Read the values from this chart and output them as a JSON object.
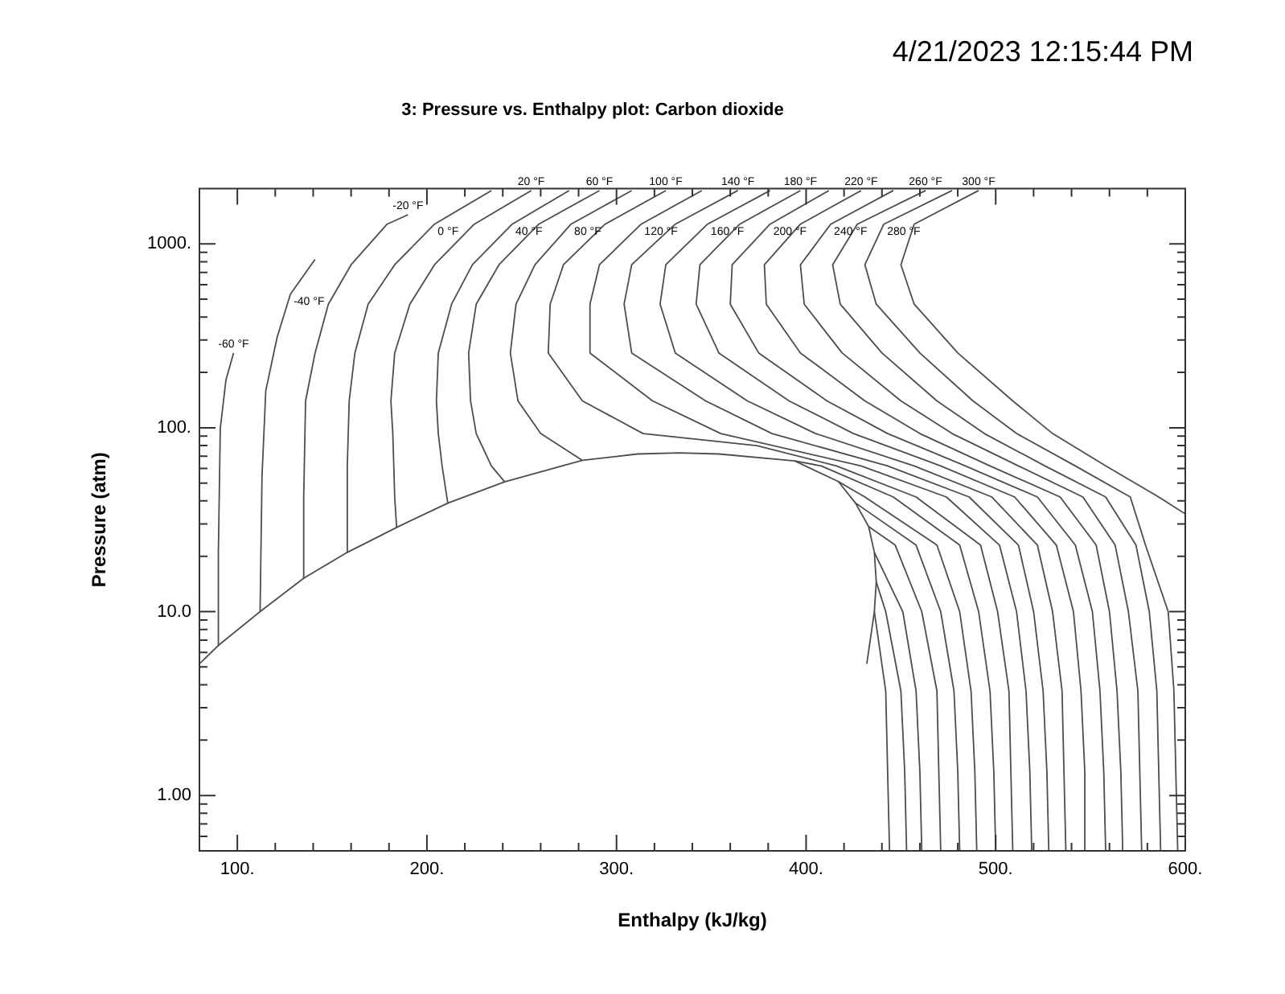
{
  "chart_data": {
    "type": "line",
    "title": "3: Pressure vs. Enthalpy plot: Carbon dioxide",
    "xlabel": "Enthalpy (kJ/kg)",
    "ylabel": "Pressure (atm)",
    "annotations": [
      "4/21/2023 12:15:44 PM"
    ],
    "log": "y",
    "xlim": [
      80,
      600
    ],
    "ylim": [
      0.5,
      2000
    ],
    "xticks": [
      {
        "value": 80,
        "label": null
      },
      {
        "value": 100,
        "label": "100."
      },
      {
        "value": 120,
        "label": null
      },
      {
        "value": 140,
        "label": null
      },
      {
        "value": 160,
        "label": null
      },
      {
        "value": 180,
        "label": null
      },
      {
        "value": 200,
        "label": "200."
      },
      {
        "value": 220,
        "label": null
      },
      {
        "value": 240,
        "label": null
      },
      {
        "value": 260,
        "label": null
      },
      {
        "value": 280,
        "label": null
      },
      {
        "value": 300,
        "label": "300."
      },
      {
        "value": 320,
        "label": null
      },
      {
        "value": 340,
        "label": null
      },
      {
        "value": 360,
        "label": null
      },
      {
        "value": 380,
        "label": null
      },
      {
        "value": 400,
        "label": "400."
      },
      {
        "value": 420,
        "label": null
      },
      {
        "value": 440,
        "label": null
      },
      {
        "value": 460,
        "label": null
      },
      {
        "value": 480,
        "label": null
      },
      {
        "value": 500,
        "label": "500."
      },
      {
        "value": 520,
        "label": null
      },
      {
        "value": 540,
        "label": null
      },
      {
        "value": 560,
        "label": null
      },
      {
        "value": 580,
        "label": null
      },
      {
        "value": 600,
        "label": "600."
      }
    ],
    "yticks": [
      {
        "value": 0.6,
        "label": null
      },
      {
        "value": 0.7,
        "label": null
      },
      {
        "value": 0.8,
        "label": null
      },
      {
        "value": 0.9,
        "label": null
      },
      {
        "value": 1,
        "label": "1.00"
      },
      {
        "value": 2,
        "label": null
      },
      {
        "value": 3,
        "label": null
      },
      {
        "value": 4,
        "label": null
      },
      {
        "value": 5,
        "label": null
      },
      {
        "value": 6,
        "label": null
      },
      {
        "value": 7,
        "label": null
      },
      {
        "value": 8,
        "label": null
      },
      {
        "value": 9,
        "label": null
      },
      {
        "value": 10,
        "label": "10.0"
      },
      {
        "value": 20,
        "label": null
      },
      {
        "value": 30,
        "label": null
      },
      {
        "value": 40,
        "label": null
      },
      {
        "value": 50,
        "label": null
      },
      {
        "value": 60,
        "label": null
      },
      {
        "value": 70,
        "label": null
      },
      {
        "value": 80,
        "label": null
      },
      {
        "value": 90,
        "label": null
      },
      {
        "value": 100,
        "label": "100."
      },
      {
        "value": 200,
        "label": null
      },
      {
        "value": 300,
        "label": null
      },
      {
        "value": 400,
        "label": null
      },
      {
        "value": 500,
        "label": null
      },
      {
        "value": 600,
        "label": null
      },
      {
        "value": 700,
        "label": null
      },
      {
        "value": 800,
        "label": null
      },
      {
        "value": 900,
        "label": null
      },
      {
        "value": 1000,
        "label": "1000."
      }
    ],
    "series": [
      {
        "color": "#4d4d4d",
        "x": [
          80,
          90,
          112,
          135,
          158,
          184,
          211,
          241,
          282,
          311,
          333,
          354,
          394,
          417,
          426,
          433,
          436,
          437,
          436,
          432
        ],
        "values": [
          5.2,
          6.55,
          10,
          15.2,
          21,
          28.7,
          38.9,
          50.8,
          66.5,
          72,
          73,
          72,
          66,
          51,
          39,
          29,
          21,
          14.5,
          10,
          5.2
        ]
      },
      {
        "name": "-60 °F",
        "color": "#4d4d4d",
        "x": [
          98,
          94,
          91,
          90,
          90
        ],
        "values": [
          255,
          182,
          99,
          21,
          6.55
        ]
      },
      {
        "name": "-40 °F",
        "color": "#4d4d4d",
        "x": [
          141,
          128,
          121,
          115,
          113,
          112
        ],
        "values": [
          824,
          533,
          311,
          159,
          54,
          10
        ]
      },
      {
        "name": "-20 °F",
        "color": "#4d4d4d",
        "x": [
          190,
          179,
          160,
          148,
          141,
          136,
          135,
          135
        ],
        "values": [
          1440,
          1280,
          770,
          470,
          255,
          140,
          42,
          15.2
        ]
      },
      {
        "name": "0 °F",
        "color": "#4d4d4d",
        "x": [
          234,
          204,
          183,
          169,
          162,
          159,
          158,
          158
        ],
        "values": [
          1950,
          1280,
          770,
          470,
          255,
          140,
          62,
          21
        ]
      },
      {
        "name": "20 °F",
        "color": "#4d4d4d",
        "x": [
          255,
          225,
          204,
          191,
          183,
          181,
          182,
          183,
          184
        ],
        "values": [
          1950,
          1280,
          770,
          470,
          255,
          140,
          93,
          42,
          28.7
        ]
      },
      {
        "name": "40 °F",
        "color": "#4d4d4d",
        "x": [
          275,
          245,
          224,
          213,
          206,
          205,
          206,
          208,
          211
        ],
        "values": [
          1950,
          1280,
          770,
          470,
          255,
          140,
          93,
          62,
          38.9
        ]
      },
      {
        "name": "60 °F",
        "color": "#4d4d4d",
        "x": [
          291,
          259,
          238,
          226,
          222,
          223,
          226,
          234,
          241
        ],
        "values": [
          1950,
          1280,
          770,
          470,
          255,
          140,
          93,
          62,
          50.8
        ]
      },
      {
        "name": "80 °F",
        "color": "#4d4d4d",
        "x": [
          308,
          276,
          257,
          247,
          244,
          248,
          260,
          282
        ],
        "values": [
          1950,
          1280,
          770,
          470,
          255,
          140,
          93,
          66.5
        ]
      },
      {
        "color": "#4d4d4d",
        "x": [
          436,
          442,
          443,
          444
        ],
        "values": [
          10,
          3.7,
          1.35,
          0.5
        ]
      },
      {
        "color": "#4d4d4d",
        "x": [
          437,
          442,
          450,
          452,
          453
        ],
        "values": [
          14.5,
          10,
          3.7,
          1.35,
          0.5
        ]
      },
      {
        "color": "#4d4d4d",
        "x": [
          436,
          451,
          458,
          460,
          461
        ],
        "values": [
          21,
          10,
          3.7,
          1.35,
          0.5
        ]
      },
      {
        "color": "#4d4d4d",
        "x": [
          433,
          447,
          461,
          469,
          470,
          471
        ],
        "values": [
          29,
          23,
          10,
          3.7,
          1.35,
          0.5
        ]
      },
      {
        "color": "#4d4d4d",
        "x": [
          426,
          458,
          471,
          478,
          480,
          481
        ],
        "values": [
          39,
          23,
          10,
          3.7,
          1.35,
          0.5
        ]
      },
      {
        "color": "#4d4d4d",
        "x": [
          417,
          431,
          469,
          481,
          487,
          489,
          490
        ],
        "values": [
          51,
          42,
          23,
          10,
          3.7,
          1.35,
          0.5
        ]
      },
      {
        "color": "#4d4d4d",
        "x": [
          394,
          408,
          446,
          481,
          491,
          497,
          499,
          500
        ],
        "values": [
          66,
          62,
          42,
          23,
          10,
          3.7,
          1.35,
          0.5
        ]
      },
      {
        "name": "100 °F",
        "color": "#4d4d4d",
        "x": [
          326,
          294,
          272,
          265,
          264,
          282,
          314,
          374,
          416,
          458,
          492,
          501,
          507,
          508,
          509
        ],
        "values": [
          1950,
          1280,
          770,
          470,
          255,
          140,
          93,
          80,
          62,
          42,
          23,
          10,
          3.7,
          1.35,
          0.5
        ]
      },
      {
        "name": "120 °F",
        "color": "#4d4d4d",
        "x": [
          345,
          313,
          291,
          286,
          286,
          319,
          355,
          429,
          474,
          502,
          511,
          516,
          518,
          519
        ],
        "values": [
          1950,
          1280,
          770,
          470,
          255,
          140,
          93,
          62,
          42,
          23,
          10,
          3.7,
          1.35,
          0.5
        ]
      },
      {
        "name": "140 °F",
        "color": "#4d4d4d",
        "x": [
          364,
          331,
          308,
          304,
          308,
          347,
          382,
          443,
          486,
          512,
          520,
          525,
          527,
          528
        ],
        "values": [
          1950,
          1280,
          770,
          470,
          255,
          140,
          93,
          62,
          42,
          23,
          10,
          3.7,
          1.35,
          0.5
        ]
      },
      {
        "name": "160 °F",
        "color": "#4d4d4d",
        "x": [
          381,
          348,
          326,
          323,
          331,
          369,
          405,
          457,
          498,
          522,
          530,
          535,
          536,
          537
        ],
        "values": [
          1950,
          1280,
          770,
          470,
          255,
          140,
          93,
          62,
          42,
          23,
          10,
          3.7,
          1.35,
          0.5
        ]
      },
      {
        "name": "180 °F",
        "color": "#4d4d4d",
        "x": [
          397,
          365,
          344,
          342,
          354,
          391,
          425,
          471,
          510,
          532,
          541,
          545,
          547,
          547
        ],
        "values": [
          1950,
          1280,
          770,
          470,
          255,
          140,
          93,
          62,
          42,
          23,
          10,
          3.7,
          1.35,
          0.5
        ]
      },
      {
        "name": "200 °F",
        "color": "#4d4d4d",
        "x": [
          412,
          381,
          361,
          360,
          375,
          411,
          443,
          484,
          522,
          542,
          551,
          555,
          557,
          558
        ],
        "values": [
          1950,
          1280,
          770,
          470,
          255,
          140,
          93,
          62,
          42,
          23,
          10,
          3.7,
          1.35,
          0.5
        ]
      },
      {
        "name": "220 °F",
        "color": "#4d4d4d",
        "x": [
          429,
          397,
          378,
          379,
          397,
          431,
          460,
          497,
          534,
          553,
          560,
          564,
          566,
          567
        ],
        "values": [
          1950,
          1280,
          770,
          470,
          255,
          140,
          93,
          62,
          42,
          23,
          10,
          3.7,
          1.35,
          0.5
        ]
      },
      {
        "name": "240 °F",
        "color": "#4d4d4d",
        "x": [
          446,
          413,
          397,
          399,
          419,
          450,
          477,
          512,
          546,
          563,
          570,
          575,
          576,
          577
        ],
        "values": [
          1950,
          1280,
          770,
          470,
          255,
          140,
          93,
          62,
          42,
          23,
          10,
          3.7,
          1.35,
          0.5
        ]
      },
      {
        "name": "260 °F",
        "color": "#4d4d4d",
        "x": [
          463,
          427,
          414,
          418,
          440,
          469,
          494,
          526,
          558,
          574,
          581,
          585,
          586,
          587
        ],
        "values": [
          1950,
          1280,
          770,
          470,
          255,
          140,
          93,
          62,
          42,
          23,
          10,
          3.7,
          1.35,
          0.5
        ]
      },
      {
        "name": "280 °F",
        "color": "#4d4d4d",
        "x": [
          477,
          441,
          431,
          437,
          460,
          488,
          511,
          542,
          571,
          579,
          591,
          594,
          595,
          596
        ],
        "values": [
          1950,
          1280,
          770,
          470,
          255,
          140,
          93,
          62,
          42,
          23,
          10,
          3.7,
          1.35,
          0.5
        ]
      },
      {
        "name": "300 °F",
        "color": "#4d4d4d",
        "x": [
          491,
          457,
          450,
          457,
          480,
          509,
          530,
          558,
          586,
          600
        ],
        "values": [
          1950,
          1280,
          770,
          470,
          255,
          140,
          93,
          62,
          42,
          34
        ]
      }
    ]
  }
}
